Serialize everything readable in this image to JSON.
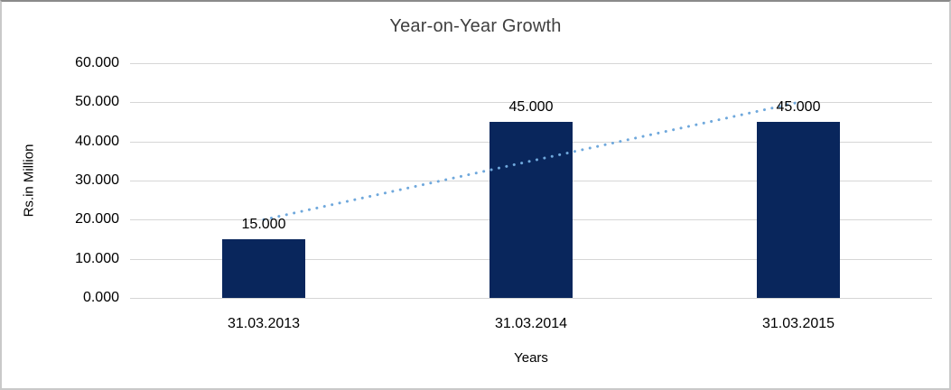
{
  "window": {
    "background": "#ffffff",
    "border_color": "#c9c9c9"
  },
  "chart_data": {
    "type": "bar",
    "title": "Year-on-Year Growth",
    "xlabel": "Years",
    "ylabel": "Rs.in Million",
    "categories": [
      "31.03.2013",
      "31.03.2014",
      "31.03.2015"
    ],
    "values": [
      15,
      45,
      45
    ],
    "data_labels": [
      "15.000",
      "45.000",
      "45.000"
    ],
    "ylim": [
      0,
      60
    ],
    "ytick_step": 10,
    "ytick_labels": [
      "0.000",
      "10.000",
      "20.000",
      "30.000",
      "40.000",
      "50.000",
      "60.000"
    ],
    "grid": true,
    "legend": "none",
    "bar_color": "#09265c",
    "gridline_color": "#d6d6d6",
    "title_color": "#3f3f3f",
    "text_color": "#000000",
    "trendline": {
      "type": "linear",
      "style": "dotted",
      "color": "#6fa8dc",
      "start_value": 20,
      "end_value": 50
    }
  }
}
